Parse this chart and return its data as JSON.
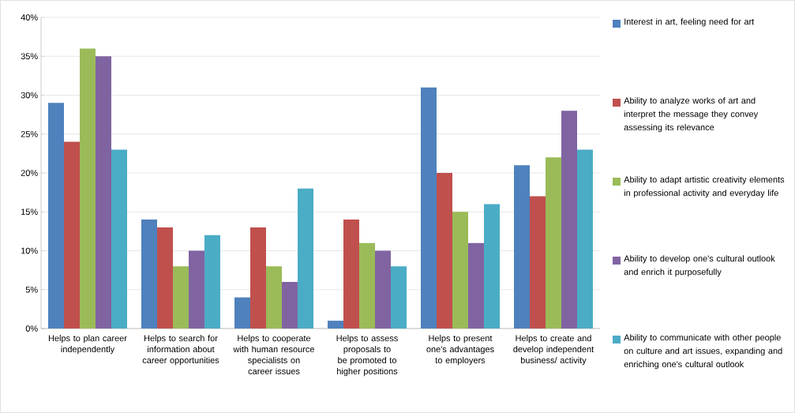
{
  "chart_data": {
    "type": "bar",
    "categories": [
      "Helps to plan career independently",
      "Helps to search for information about career opportunities",
      "Helps to cooperate with human resource specialists on career issues",
      "Helps to assess proposals to be promoted to higher positions",
      "Helps to present one's advantages to employers",
      "Helps to create and develop independent business/ activity"
    ],
    "series": [
      {
        "name": "Interest in art, feeling need for art",
        "color": "#4f81bd",
        "values": [
          29,
          14,
          4,
          1,
          31,
          21
        ]
      },
      {
        "name": "Ability to analyze works of art and interpret the message they convey assessing its relevance",
        "color": "#c0504d",
        "values": [
          24,
          13,
          13,
          14,
          20,
          17
        ]
      },
      {
        "name": "Ability to adapt artistic creativity elements in professional activity and everyday life",
        "color": "#9bbb59",
        "values": [
          36,
          8,
          8,
          11,
          15,
          22
        ]
      },
      {
        "name": "Ability to develop one's cultural outlook and enrich it purposefully",
        "color": "#8064a2",
        "values": [
          35,
          10,
          6,
          10,
          11,
          28
        ]
      },
      {
        "name": "Ability to communicate with other people on culture and art issues, expanding and enriching one's cultural outlook",
        "color": "#4bacc6",
        "values": [
          23,
          12,
          18,
          8,
          16,
          23
        ]
      }
    ],
    "ylim": [
      0,
      40
    ],
    "yticks": [
      {
        "value": 0,
        "label": "0%"
      },
      {
        "value": 5,
        "label": "5%"
      },
      {
        "value": 10,
        "label": "10%"
      },
      {
        "value": 15,
        "label": "15%"
      },
      {
        "value": 20,
        "label": "20%"
      },
      {
        "value": 25,
        "label": "25%"
      },
      {
        "value": 30,
        "label": "30%"
      },
      {
        "value": 35,
        "label": "35%"
      },
      {
        "value": 40,
        "label": "40%"
      }
    ],
    "grid": "y",
    "legend": "right"
  }
}
